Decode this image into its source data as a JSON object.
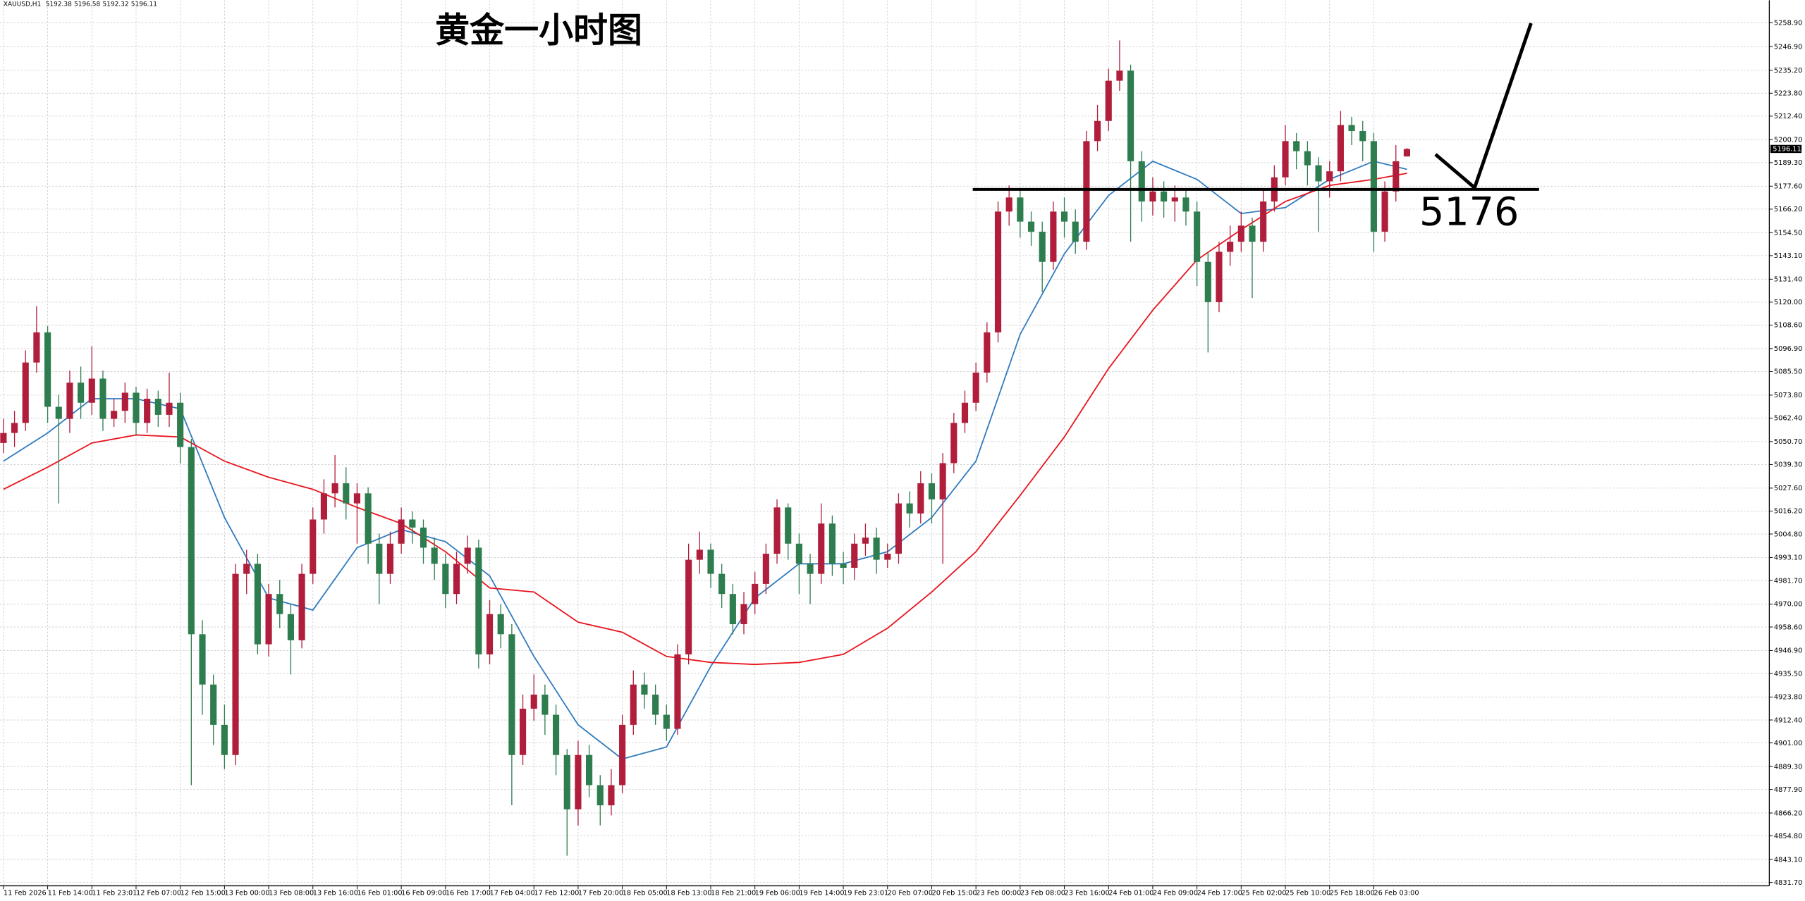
{
  "chart_data": {
    "type": "candlestick",
    "symbol": "XAUUSD,H1",
    "title": "黄金一小时图",
    "up_color": "#b01e3c",
    "down_color": "#2e7d4f",
    "grid": true,
    "ylim": [
      4830,
      5270
    ],
    "yticks": [
      {
        "value": 5258.9,
        "label": "5258.90"
      },
      {
        "value": 5246.9,
        "label": "5246.90"
      },
      {
        "value": 5235.2,
        "label": "5235.20"
      },
      {
        "value": 5223.8,
        "label": "5223.80"
      },
      {
        "value": 5212.4,
        "label": "5212.40"
      },
      {
        "value": 5200.7,
        "label": "5200.70"
      },
      {
        "value": 5189.3,
        "label": "5189.30"
      },
      {
        "value": 5177.6,
        "label": "5177.60"
      },
      {
        "value": 5166.2,
        "label": "5166.20"
      },
      {
        "value": 5154.5,
        "label": "5154.50"
      },
      {
        "value": 5143.1,
        "label": "5143.10"
      },
      {
        "value": 5131.4,
        "label": "5131.40"
      },
      {
        "value": 5120,
        "label": "5120.00"
      },
      {
        "value": 5108.6,
        "label": "5108.60"
      },
      {
        "value": 5096.9,
        "label": "5096.90"
      },
      {
        "value": 5085.5,
        "label": "5085.50"
      },
      {
        "value": 5073.8,
        "label": "5073.80"
      },
      {
        "value": 5062.4,
        "label": "5062.40"
      },
      {
        "value": 5050.7,
        "label": "5050.70"
      },
      {
        "value": 5039.3,
        "label": "5039.30"
      },
      {
        "value": 5027.6,
        "label": "5027.60"
      },
      {
        "value": 5016.2,
        "label": "5016.20"
      },
      {
        "value": 5004.8,
        "label": "5004.80"
      },
      {
        "value": 4993.1,
        "label": "4993.10"
      },
      {
        "value": 4981.7,
        "label": "4981.70"
      },
      {
        "value": 4970,
        "label": "4970.00"
      },
      {
        "value": 4958.6,
        "label": "4958.60"
      },
      {
        "value": 4946.9,
        "label": "4946.90"
      },
      {
        "value": 4935.5,
        "label": "4935.50"
      },
      {
        "value": 4923.8,
        "label": "4923.80"
      },
      {
        "value": 4912.4,
        "label": "4912.40"
      },
      {
        "value": 4901,
        "label": "4901.00"
      },
      {
        "value": 4889.3,
        "label": "4889.30"
      },
      {
        "value": 4877.9,
        "label": "4877.90"
      },
      {
        "value": 4866.2,
        "label": "4866.20"
      },
      {
        "value": 4854.8,
        "label": "4854.80"
      },
      {
        "value": 4843.1,
        "label": "4843.10"
      },
      {
        "value": 4831.7,
        "label": "4831.70"
      }
    ],
    "categories": [
      "11 Feb 2026",
      null,
      null,
      null,
      "11 Feb 14:00",
      null,
      null,
      null,
      "11 Feb 23:01",
      null,
      null,
      null,
      "12 Feb 07:00",
      null,
      null,
      null,
      "12 Feb 15:00",
      null,
      null,
      null,
      "13 Feb 00:00",
      null,
      null,
      null,
      "13 Feb 08:00",
      null,
      null,
      null,
      "13 Feb 16:00",
      null,
      null,
      null,
      "16 Feb 01:00",
      null,
      null,
      null,
      "16 Feb 09:00",
      null,
      null,
      null,
      "16 Feb 17:00",
      null,
      null,
      null,
      "17 Feb 04:00",
      null,
      null,
      null,
      "17 Feb 12:00",
      null,
      null,
      null,
      "17 Feb 20:00",
      null,
      null,
      null,
      "18 Feb 05:00",
      null,
      null,
      null,
      "18 Feb 13:00",
      null,
      null,
      null,
      "18 Feb 21:00",
      null,
      null,
      null,
      "19 Feb 06:00",
      null,
      null,
      null,
      "19 Feb 14:00",
      null,
      null,
      null,
      "19 Feb 23:01",
      null,
      null,
      null,
      "20 Feb 07:00",
      null,
      null,
      null,
      "20 Feb 15:00",
      null,
      null,
      null,
      "23 Feb 00:00",
      null,
      null,
      null,
      "23 Feb 08:00",
      null,
      null,
      null,
      "23 Feb 16:00",
      null,
      null,
      null,
      "24 Feb 01:00",
      null,
      null,
      null,
      "24 Feb 09:00",
      null,
      null,
      null,
      "24 Feb 17:00",
      null,
      null,
      null,
      "25 Feb 02:00",
      null,
      null,
      null,
      "25 Feb 10:00",
      null,
      null,
      null,
      "25 Feb 18:00",
      null,
      null,
      null,
      "26 Feb 03:00",
      null,
      null,
      null
    ],
    "open": [
      5050,
      5055,
      5060,
      5090,
      5105,
      5068,
      5062,
      5080,
      5070,
      5082,
      5062,
      5066,
      5075,
      5060,
      5072,
      5064,
      5070,
      5048,
      4955,
      4930,
      4910,
      4895,
      4985,
      4990,
      4950,
      4975,
      4965,
      4952,
      4985,
      5012,
      5025,
      5030,
      5020,
      5025,
      5000,
      4985,
      5000,
      5012,
      5008,
      4998,
      4990,
      4975,
      4990,
      4998,
      4945,
      4965,
      4955,
      4895,
      4918,
      4925,
      4915,
      4895,
      4868,
      4895,
      4880,
      4870,
      4880,
      4910,
      4930,
      4925,
      4915,
      4908,
      4945,
      4992,
      4997,
      4985,
      4975,
      4960,
      4970,
      4980,
      4995,
      5018,
      5000,
      4990,
      4985,
      5010,
      4990,
      4988,
      5000,
      5003,
      4992,
      4995,
      5020,
      5015,
      5030,
      5022,
      5040,
      5060,
      5070,
      5085,
      5105,
      5165,
      5172,
      5160,
      5155,
      5140,
      5165,
      5160,
      5150,
      5200,
      5210,
      5230,
      5235,
      5190,
      5170,
      5175,
      5170,
      5172,
      5165,
      5140,
      5120,
      5145,
      5150,
      5158,
      5150,
      5170,
      5182,
      5200,
      5195,
      5188,
      5180,
      5185,
      5208,
      5205,
      5200,
      5155,
      5175,
      5192.38
    ],
    "high": [
      5062,
      5066,
      5096,
      5118,
      5108,
      5074,
      5086,
      5088,
      5098,
      5086,
      5072,
      5080,
      5078,
      5077,
      5076,
      5085,
      5075,
      5052,
      4962,
      4935,
      4920,
      4990,
      4997,
      4995,
      4980,
      4982,
      4970,
      4990,
      5018,
      5032,
      5044,
      5038,
      5030,
      5028,
      5005,
      5006,
      5018,
      5016,
      5012,
      5003,
      4995,
      4996,
      5004,
      5002,
      4972,
      4970,
      4960,
      4925,
      4935,
      4930,
      4920,
      4898,
      4902,
      4900,
      4885,
      4888,
      4915,
      4937,
      4936,
      4930,
      4920,
      4950,
      5000,
      5006,
      5000,
      4990,
      4980,
      4976,
      4986,
      5000,
      5022,
      5020,
      5005,
      4995,
      5020,
      5014,
      4996,
      5005,
      5010,
      5008,
      5000,
      5025,
      5026,
      5036,
      5035,
      5045,
      5065,
      5076,
      5090,
      5110,
      5170,
      5178,
      5176,
      5165,
      5160,
      5170,
      5172,
      5166,
      5205,
      5218,
      5236,
      5250,
      5238,
      5195,
      5182,
      5180,
      5178,
      5176,
      5170,
      5145,
      5150,
      5158,
      5165,
      5162,
      5176,
      5188,
      5208,
      5204,
      5200,
      5192,
      5190,
      5215,
      5212,
      5210,
      5204,
      5180,
      5198,
      5196.58
    ],
    "low": [
      5045,
      5048,
      5056,
      5085,
      5060,
      5020,
      5055,
      5062,
      5064,
      5056,
      5058,
      5060,
      5054,
      5055,
      5058,
      5058,
      5040,
      4880,
      4915,
      4900,
      4888,
      4890,
      4975,
      4945,
      4944,
      4958,
      4935,
      4948,
      4980,
      5005,
      5018,
      5012,
      5000,
      4990,
      4970,
      4980,
      4995,
      5000,
      4990,
      4982,
      4968,
      4970,
      4985,
      4938,
      4940,
      4948,
      4870,
      4890,
      4912,
      4905,
      4885,
      4845,
      4860,
      4874,
      4860,
      4865,
      4876,
      4905,
      4918,
      4910,
      4902,
      4905,
      4940,
      4985,
      4978,
      4968,
      4955,
      4955,
      4965,
      4975,
      4990,
      4992,
      4975,
      4970,
      4980,
      4984,
      4980,
      4982,
      4994,
      4985,
      4988,
      4990,
      5008,
      5010,
      5010,
      4990,
      5035,
      5055,
      5066,
      5080,
      5100,
      5158,
      5152,
      5148,
      5125,
      5136,
      5152,
      5144,
      5146,
      5195,
      5205,
      5225,
      5150,
      5160,
      5163,
      5162,
      5160,
      5158,
      5128,
      5095,
      5115,
      5138,
      5145,
      5122,
      5145,
      5165,
      5178,
      5186,
      5178,
      5155,
      5172,
      5180,
      5198,
      5190,
      5145,
      5150,
      5170,
      5192.32
    ],
    "close": [
      5055,
      5060,
      5090,
      5105,
      5068,
      5062,
      5080,
      5070,
      5082,
      5062,
      5066,
      5075,
      5060,
      5072,
      5064,
      5070,
      5048,
      4955,
      4930,
      4910,
      4895,
      4985,
      4990,
      4950,
      4975,
      4965,
      4952,
      4985,
      5012,
      5025,
      5030,
      5020,
      5025,
      5000,
      4985,
      5000,
      5012,
      5008,
      4998,
      4990,
      4975,
      4990,
      4998,
      4945,
      4965,
      4955,
      4895,
      4918,
      4925,
      4915,
      4895,
      4868,
      4895,
      4880,
      4870,
      4880,
      4910,
      4930,
      4925,
      4915,
      4908,
      4945,
      4992,
      4997,
      4985,
      4975,
      4960,
      4970,
      4980,
      4995,
      5018,
      5000,
      4990,
      4985,
      5010,
      4990,
      4988,
      5000,
      5003,
      4992,
      4995,
      5020,
      5015,
      5030,
      5022,
      5040,
      5060,
      5070,
      5085,
      5105,
      5165,
      5172,
      5160,
      5155,
      5140,
      5165,
      5160,
      5150,
      5200,
      5210,
      5230,
      5235,
      5190,
      5170,
      5175,
      5170,
      5172,
      5165,
      5140,
      5120,
      5145,
      5150,
      5158,
      5150,
      5170,
      5182,
      5200,
      5195,
      5188,
      5180,
      5185,
      5208,
      5205,
      5200,
      5155,
      5175,
      5190,
      5196.11
    ],
    "moving_averages": [
      {
        "color": "#2f7bbf",
        "x": [
          0,
          4,
          8,
          12,
          16,
          20,
          24,
          28,
          32,
          36,
          40,
          44,
          48,
          52,
          56,
          60,
          64,
          68,
          72,
          76,
          80,
          84,
          88,
          92,
          96,
          100,
          104,
          108,
          112,
          116,
          120,
          124,
          127
        ],
        "values": [
          5041,
          5055,
          5072,
          5072,
          5067,
          5013,
          4973,
          4967,
          4998,
          5007,
          5001,
          4984,
          4944,
          4910,
          4893,
          4899,
          4939,
          4973,
          4990,
          4990,
          4996,
          5013,
          5041,
          5104,
          5144,
          5173,
          5190,
          5181,
          5164,
          5167,
          5181,
          5190,
          5186
        ]
      },
      {
        "color": "#e8141e",
        "x": [
          0,
          4,
          8,
          12,
          16,
          20,
          24,
          28,
          32,
          36,
          40,
          44,
          48,
          52,
          56,
          60,
          64,
          68,
          72,
          76,
          80,
          84,
          88,
          92,
          96,
          100,
          104,
          108,
          112,
          116,
          120,
          124,
          127
        ],
        "values": [
          5027,
          5038,
          5050,
          5054,
          5053,
          5041,
          5033,
          5027,
          5018,
          5010,
          4996,
          4978,
          4976,
          4961,
          4956,
          4944,
          4941,
          4940,
          4941,
          4945,
          4958,
          4976,
          4996,
          5024,
          5053,
          5087,
          5116,
          5141,
          5156,
          5170,
          5178,
          5181,
          5184
        ]
      }
    ],
    "annotations": {
      "level": 5176
    }
  }
}
